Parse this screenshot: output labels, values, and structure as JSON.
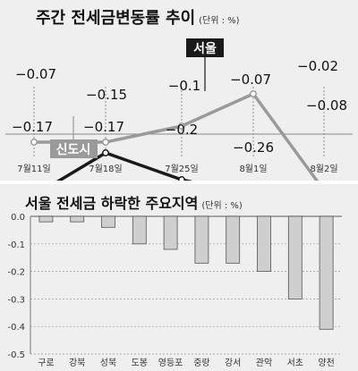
{
  "chart_data": [
    {
      "type": "line",
      "title": "주간 전세금변동률 추이",
      "unit": "(단위 : %)",
      "categories": [
        "7월11일",
        "7월18일",
        "7월25일",
        "8월1일",
        "8월2일"
      ],
      "series": [
        {
          "name": "서울",
          "values": [
            -0.07,
            -0.15,
            -0.1,
            -0.07,
            -0.02
          ],
          "labels": [
            "−0.07",
            "−0.15",
            "−0.1",
            "−0.07",
            "−0.02"
          ],
          "color": "#1a1a1a"
        },
        {
          "name": "신도시",
          "values": [
            -0.17,
            -0.17,
            -0.2,
            -0.26,
            -0.08
          ],
          "labels": [
            "−0.17",
            "−0.17",
            "−0.2",
            "−0.26",
            "−0.08"
          ],
          "color": "#9a9a9a"
        }
      ]
    },
    {
      "type": "bar",
      "title": "서울 전세금 하락한 주요지역",
      "unit": "(단위 : %)",
      "categories": [
        "구로",
        "강북",
        "성북",
        "도봉",
        "영등포",
        "중랑",
        "강서",
        "관악",
        "서초",
        "양천"
      ],
      "values": [
        -0.02,
        -0.02,
        -0.04,
        -0.1,
        -0.12,
        -0.17,
        -0.17,
        -0.2,
        -0.3,
        -0.41
      ],
      "ylim": [
        -0.5,
        0.0
      ],
      "yticks": [
        "0.0",
        "-0.1",
        "-0.2",
        "-0.3",
        "-0.4",
        "-0.5"
      ],
      "bar_color": "#cfcfcf"
    }
  ]
}
